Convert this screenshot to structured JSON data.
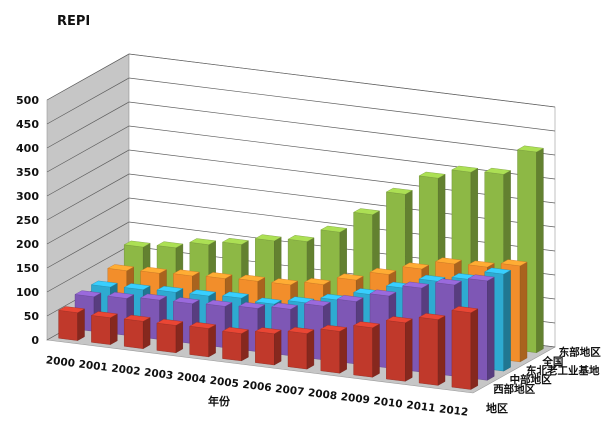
{
  "chart_data": {
    "type": "bar",
    "variant": "3d-column",
    "ylabel": "REPI",
    "xlabel": "年份",
    "zlabel": "地区",
    "ylim": [
      0,
      500
    ],
    "yticks": [
      0,
      50,
      100,
      150,
      200,
      250,
      300,
      350,
      400,
      450,
      500
    ],
    "grid": true,
    "categories": [
      "2000",
      "2001",
      "2002",
      "2003",
      "2004",
      "2005",
      "2006",
      "2007",
      "2008",
      "2009",
      "2010",
      "2011",
      "2012"
    ],
    "series": [
      {
        "name": "西部地区",
        "color": "#c0392b",
        "values": [
          58,
          56,
          57,
          57,
          59,
          57,
          65,
          74,
          87,
          103,
          122,
          137,
          160
        ]
      },
      {
        "name": "中部地区",
        "color": "#7e57b5",
        "values": [
          72,
          77,
          82,
          83,
          86,
          90,
          97,
          112,
          130,
          150,
          175,
          190,
          207
        ]
      },
      {
        "name": "东北老工业基地",
        "color": "#2eaad1",
        "values": [
          73,
          76,
          79,
          80,
          84,
          80,
          91,
          105,
          125,
          147,
          170,
          182,
          202
        ]
      },
      {
        "name": "全国",
        "color": "#f28e2b",
        "values": [
          88,
          91,
          94,
          97,
          100,
          101,
          110,
          128,
          148,
          168,
          187,
          189,
          200
        ]
      },
      {
        "name": "东部地区",
        "color": "#8db845",
        "values": [
          118,
          125,
          140,
          149,
          165,
          172,
          200,
          245,
          296,
          338,
          359,
          363,
          418
        ]
      }
    ]
  }
}
